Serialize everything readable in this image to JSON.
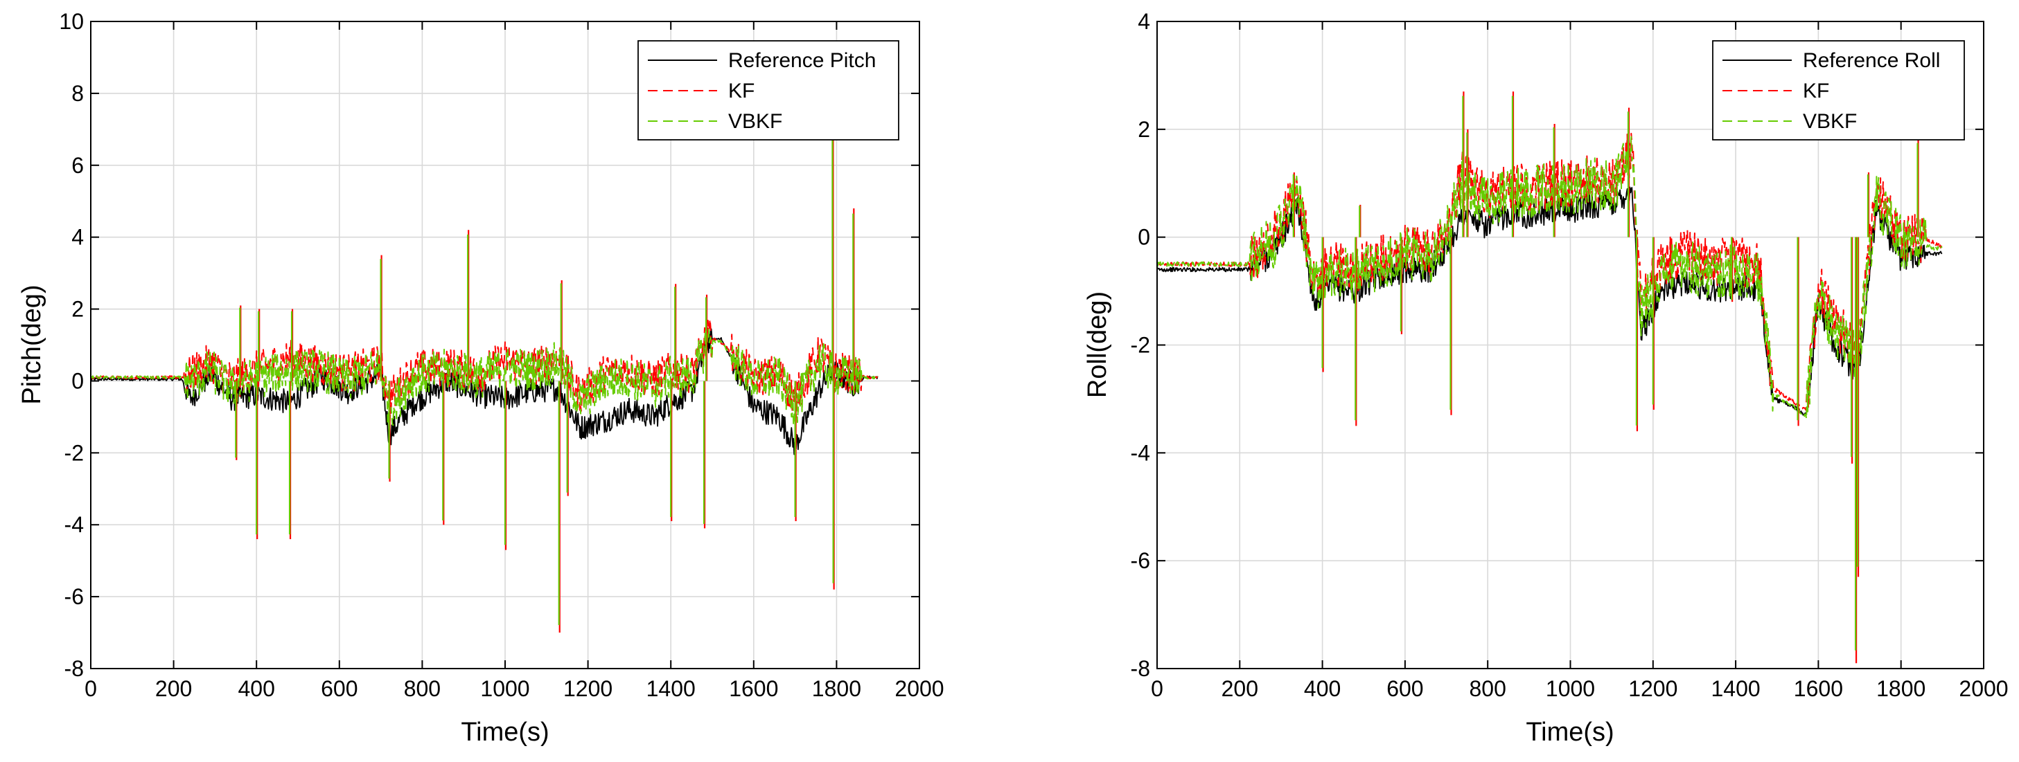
{
  "chart_data": [
    {
      "type": "line",
      "title": "",
      "xlabel": "Time(s)",
      "ylabel": "Pitch(deg)",
      "xlim": [
        0,
        2000
      ],
      "ylim": [
        -8,
        10
      ],
      "xticks": [
        0,
        200,
        400,
        600,
        800,
        1000,
        1200,
        1400,
        1600,
        1800,
        2000
      ],
      "yticks": [
        -8,
        -6,
        -4,
        -2,
        0,
        2,
        4,
        6,
        8,
        10
      ],
      "grid": true,
      "legend_position": "top-right",
      "colors": {
        "reference": "#000000",
        "kf": "#ff0000",
        "vbkf": "#66cc00"
      },
      "series": [
        {
          "name": "Reference Pitch",
          "style": "solid",
          "x": [
            0,
            220,
            240,
            290,
            340,
            400,
            480,
            560,
            620,
            700,
            720,
            780,
            860,
            940,
            1000,
            1060,
            1130,
            1180,
            1240,
            1300,
            1360,
            1400,
            1450,
            1490,
            1520,
            1560,
            1600,
            1660,
            1700,
            1760,
            1790,
            1840,
            1870,
            1900
          ],
          "y": [
            0.05,
            0.05,
            -0.5,
            0.2,
            -0.5,
            -0.4,
            -0.6,
            0.1,
            -0.3,
            0.2,
            -1.5,
            -0.6,
            0.0,
            -0.4,
            -0.5,
            -0.3,
            -0.2,
            -1.3,
            -1.1,
            -0.8,
            -1.0,
            -0.6,
            -0.3,
            1.1,
            1.2,
            0.3,
            -0.7,
            -1.0,
            -1.8,
            -0.2,
            0.3,
            -0.1,
            0.1,
            0.1
          ]
        },
        {
          "name": "KF",
          "style": "dashed",
          "x": [
            0,
            220,
            240,
            290,
            340,
            400,
            480,
            560,
            620,
            700,
            720,
            780,
            860,
            940,
            1000,
            1060,
            1130,
            1180,
            1240,
            1300,
            1360,
            1400,
            1450,
            1490,
            1520,
            1560,
            1600,
            1660,
            1700,
            1760,
            1790,
            1840,
            1870,
            1900
          ],
          "y": [
            0.1,
            0.1,
            0.2,
            0.5,
            0.0,
            0.3,
            0.6,
            0.4,
            0.2,
            0.5,
            -0.5,
            0.3,
            0.4,
            0.2,
            0.6,
            0.4,
            0.6,
            -0.4,
            0.2,
            0.3,
            0.0,
            0.3,
            0.2,
            1.2,
            1.1,
            0.6,
            0.1,
            0.2,
            -0.5,
            0.8,
            0.3,
            0.2,
            0.1,
            0.1
          ]
        },
        {
          "name": "VBKF",
          "style": "dashed",
          "x": [
            0,
            220,
            240,
            290,
            340,
            400,
            480,
            560,
            620,
            700,
            720,
            780,
            860,
            940,
            1000,
            1060,
            1130,
            1180,
            1240,
            1300,
            1360,
            1400,
            1450,
            1490,
            1520,
            1560,
            1600,
            1660,
            1700,
            1760,
            1790,
            1840,
            1870,
            1900
          ],
          "y": [
            0.1,
            0.1,
            0.0,
            0.3,
            -0.2,
            0.1,
            0.3,
            0.3,
            0.0,
            0.4,
            -0.8,
            0.1,
            0.3,
            0.1,
            0.4,
            0.3,
            0.5,
            -0.6,
            0.0,
            0.1,
            -0.2,
            0.1,
            0.1,
            1.1,
            1.1,
            0.5,
            0.0,
            0.1,
            -0.7,
            0.6,
            0.2,
            0.1,
            0.1,
            0.1
          ]
        }
      ],
      "spikes": [
        {
          "x": 350,
          "y": -2.2
        },
        {
          "x": 360,
          "y": 2.1
        },
        {
          "x": 400,
          "y": -4.4
        },
        {
          "x": 405,
          "y": 2.0
        },
        {
          "x": 480,
          "y": -4.4
        },
        {
          "x": 485,
          "y": 2.0
        },
        {
          "x": 700,
          "y": 3.5
        },
        {
          "x": 720,
          "y": -2.8
        },
        {
          "x": 850,
          "y": -4.0
        },
        {
          "x": 910,
          "y": 4.2
        },
        {
          "x": 1000,
          "y": -4.7
        },
        {
          "x": 1130,
          "y": -7.0
        },
        {
          "x": 1135,
          "y": 2.8
        },
        {
          "x": 1150,
          "y": -3.2
        },
        {
          "x": 1400,
          "y": -3.9
        },
        {
          "x": 1410,
          "y": 2.7
        },
        {
          "x": 1480,
          "y": -4.1
        },
        {
          "x": 1485,
          "y": 2.4
        },
        {
          "x": 1700,
          "y": -3.9
        },
        {
          "x": 1790,
          "y": 6.9
        },
        {
          "x": 1792,
          "y": -5.8
        },
        {
          "x": 1840,
          "y": 4.8
        }
      ]
    },
    {
      "type": "line",
      "title": "",
      "xlabel": "Time(s)",
      "ylabel": "Roll(deg)",
      "xlim": [
        0,
        2000
      ],
      "ylim": [
        -8,
        4
      ],
      "xticks": [
        0,
        200,
        400,
        600,
        800,
        1000,
        1200,
        1400,
        1600,
        1800,
        2000
      ],
      "yticks": [
        -8,
        -6,
        -4,
        -2,
        0,
        2,
        4
      ],
      "grid": true,
      "legend_position": "top-right",
      "colors": {
        "reference": "#000000",
        "kf": "#ff0000",
        "vbkf": "#66cc00"
      },
      "series": [
        {
          "name": "Reference Roll",
          "style": "solid",
          "x": [
            0,
            220,
            280,
            340,
            380,
            420,
            480,
            540,
            600,
            660,
            700,
            740,
            800,
            860,
            900,
            960,
            1000,
            1060,
            1100,
            1150,
            1170,
            1220,
            1280,
            1340,
            1400,
            1460,
            1490,
            1530,
            1570,
            1600,
            1640,
            1690,
            1700,
            1740,
            1800,
            1840,
            1880,
            1900
          ],
          "y": [
            -0.6,
            -0.6,
            -0.3,
            0.6,
            -1.2,
            -0.9,
            -1.0,
            -0.7,
            -0.6,
            -0.6,
            -0.2,
            0.4,
            0.2,
            0.5,
            0.4,
            0.5,
            0.5,
            0.6,
            0.6,
            0.9,
            -1.8,
            -1.0,
            -0.8,
            -1.0,
            -0.9,
            -1.0,
            -3.0,
            -3.1,
            -3.3,
            -1.2,
            -2.0,
            -2.5,
            -2.2,
            0.5,
            -0.4,
            -0.3,
            -0.3,
            -0.3
          ]
        },
        {
          "name": "KF",
          "style": "dashed",
          "x": [
            0,
            220,
            280,
            340,
            380,
            420,
            480,
            540,
            600,
            660,
            700,
            740,
            800,
            860,
            900,
            960,
            1000,
            1060,
            1100,
            1150,
            1170,
            1220,
            1280,
            1340,
            1400,
            1460,
            1490,
            1530,
            1570,
            1600,
            1640,
            1690,
            1700,
            1740,
            1800,
            1840,
            1880,
            1900
          ],
          "y": [
            -0.5,
            -0.5,
            0.0,
            0.9,
            -0.8,
            -0.5,
            -0.6,
            -0.4,
            -0.2,
            -0.3,
            0.2,
            1.2,
            0.7,
            1.0,
            0.9,
            1.0,
            1.0,
            1.1,
            1.0,
            1.7,
            -1.2,
            -0.5,
            -0.3,
            -0.5,
            -0.4,
            -0.6,
            -2.8,
            -3.0,
            -3.2,
            -0.9,
            -1.6,
            -2.0,
            -1.8,
            0.8,
            0.0,
            0.0,
            -0.1,
            -0.2
          ]
        },
        {
          "name": "VBKF",
          "style": "dashed",
          "x": [
            0,
            220,
            280,
            340,
            380,
            420,
            480,
            540,
            600,
            660,
            700,
            740,
            800,
            860,
            900,
            960,
            1000,
            1060,
            1100,
            1150,
            1170,
            1220,
            1280,
            1340,
            1400,
            1460,
            1490,
            1530,
            1570,
            1600,
            1640,
            1690,
            1700,
            1740,
            1800,
            1840,
            1880,
            1900
          ],
          "y": [
            -0.5,
            -0.5,
            -0.1,
            0.8,
            -0.9,
            -0.6,
            -0.7,
            -0.5,
            -0.3,
            -0.4,
            0.1,
            1.0,
            0.6,
            0.9,
            0.8,
            0.9,
            0.9,
            1.0,
            0.9,
            1.5,
            -1.4,
            -0.7,
            -0.5,
            -0.7,
            -0.6,
            -0.8,
            -2.9,
            -3.1,
            -3.3,
            -1.0,
            -1.8,
            -2.2,
            -2.0,
            0.7,
            -0.1,
            -0.1,
            -0.2,
            -0.2
          ]
        }
      ],
      "spikes": [
        {
          "x": 330,
          "y": 1.2
        },
        {
          "x": 400,
          "y": -2.5
        },
        {
          "x": 480,
          "y": -3.5
        },
        {
          "x": 490,
          "y": 0.6
        },
        {
          "x": 590,
          "y": -1.8
        },
        {
          "x": 710,
          "y": -3.3
        },
        {
          "x": 740,
          "y": 2.7
        },
        {
          "x": 750,
          "y": 2.0
        },
        {
          "x": 860,
          "y": 2.7
        },
        {
          "x": 960,
          "y": 2.1
        },
        {
          "x": 1140,
          "y": 2.4
        },
        {
          "x": 1160,
          "y": -3.6
        },
        {
          "x": 1200,
          "y": -3.2
        },
        {
          "x": 1390,
          "y": -1.2
        },
        {
          "x": 1550,
          "y": -3.5
        },
        {
          "x": 1680,
          "y": -4.2
        },
        {
          "x": 1690,
          "y": -7.9
        },
        {
          "x": 1695,
          "y": -6.3
        },
        {
          "x": 1720,
          "y": 1.2
        },
        {
          "x": 1840,
          "y": 1.8
        }
      ]
    }
  ]
}
